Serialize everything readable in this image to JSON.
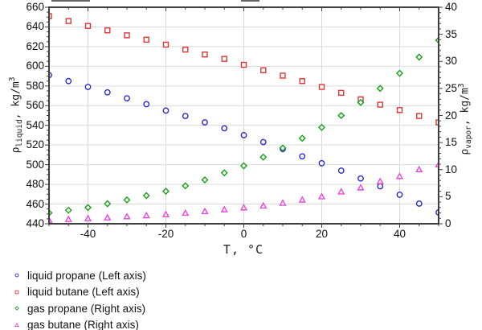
{
  "chart_data": {
    "type": "scatter",
    "x": [
      -50,
      -45,
      -40,
      -35,
      -30,
      -25,
      -20,
      -15,
      -10,
      -5,
      0,
      5,
      10,
      15,
      20,
      25,
      30,
      35,
      40,
      45,
      50
    ],
    "series": [
      {
        "name": "liquid propane (Left axis)",
        "axis": "left",
        "marker": "circle",
        "color": "#2a2ad0",
        "values": [
          591,
          585,
          579,
          573.5,
          567.5,
          561.5,
          555,
          549.5,
          543,
          537,
          530,
          523,
          516,
          508.5,
          501.5,
          494,
          486,
          478,
          469.5,
          460.5,
          451.5
        ]
      },
      {
        "name": "liquid butane (Left axis)",
        "axis": "left",
        "marker": "square",
        "color": "#e03535",
        "values": [
          651,
          646,
          641,
          636.5,
          631.5,
          627,
          622,
          617,
          612,
          607.5,
          601.5,
          596,
          590.5,
          585,
          579,
          573,
          566.5,
          561,
          555.5,
          549.5,
          543
        ]
      },
      {
        "name": "gas propane (Right axis)",
        "axis": "right",
        "marker": "diamond",
        "color": "#16a016",
        "values": [
          2.0,
          2.5,
          3.0,
          3.7,
          4.4,
          5.2,
          6.0,
          7.0,
          8.1,
          9.4,
          10.7,
          12.3,
          14.0,
          15.8,
          17.8,
          20.0,
          22.4,
          25.0,
          27.8,
          30.8,
          33.9
        ]
      },
      {
        "name": "gas butane (Right axis)",
        "axis": "right",
        "marker": "triangle",
        "color": "#e846dc",
        "values": [
          0.65,
          0.8,
          0.95,
          1.1,
          1.3,
          1.5,
          1.7,
          1.95,
          2.25,
          2.6,
          2.95,
          3.3,
          3.8,
          4.4,
          5.0,
          5.9,
          6.65,
          7.8,
          8.75,
          10.0,
          10.9
        ]
      }
    ],
    "axes": {
      "x": {
        "label": "T, °C",
        "min": -50,
        "max": 50,
        "major_ticks": [
          -40,
          -20,
          0,
          20,
          40
        ],
        "minor_step": 5
      },
      "left": {
        "label": "ρliquid, kg/m³",
        "min": 440,
        "max": 660,
        "major_step": 20,
        "minor_step": 5,
        "tick_labels": [
          660,
          640,
          620,
          600,
          580,
          560,
          540,
          520,
          500,
          480,
          460,
          440
        ]
      },
      "right": {
        "label": "ρvapor, kg/m³",
        "min": 0,
        "max": 40,
        "major_step": 5,
        "minor_step": 1,
        "tick_labels": [
          40,
          35,
          30,
          25,
          20,
          15,
          10,
          5,
          0
        ]
      }
    },
    "grid": true,
    "legend_position": "bottom-left",
    "grid_color": "#d9d9d9",
    "axis_color": "#3f3f3f"
  },
  "axis_titles": {
    "left": {
      "rho": "ρ",
      "sub": "liquid",
      "mid": ", kg/m",
      "sup": "3"
    },
    "right": {
      "rho": "ρ",
      "sub": "vapor",
      "mid": ", kg/m",
      "sup": "3"
    },
    "x": "T, °C"
  }
}
